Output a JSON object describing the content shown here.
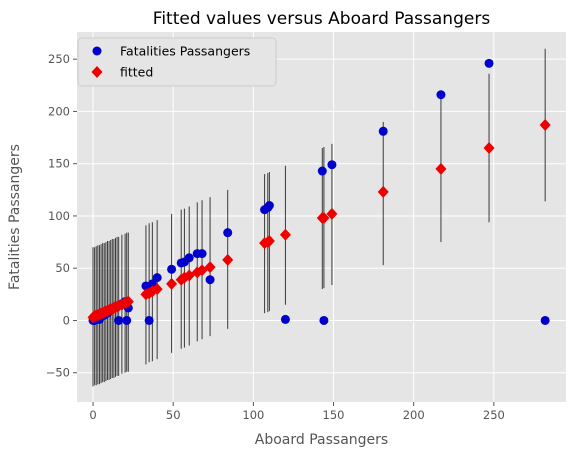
{
  "chart_data": {
    "type": "scatter",
    "title": "Fitted values versus Aboard Passangers",
    "xlabel": "Aboard Passangers",
    "ylabel": "Fatalities Passangers",
    "xlim": [
      -10,
      295
    ],
    "ylim": [
      -78,
      276
    ],
    "xticks": [
      0,
      50,
      100,
      150,
      200,
      250
    ],
    "yticks": [
      -50,
      0,
      50,
      100,
      150,
      200,
      250
    ],
    "grid": true,
    "legend": "top-left",
    "colors": {
      "background": "#e5e5e5",
      "grid": "#ffffff",
      "observed": "#0000cc",
      "fitted": "#ee0000",
      "interval": "#000000",
      "text": "#555555"
    },
    "series": [
      {
        "name": "Fatalities Passangers",
        "marker": "circle",
        "points": [
          [
            0,
            0
          ],
          [
            1,
            0
          ],
          [
            2,
            2
          ],
          [
            3,
            3
          ],
          [
            4,
            1
          ],
          [
            5,
            4
          ],
          [
            6,
            6
          ],
          [
            7,
            5
          ],
          [
            8,
            8
          ],
          [
            9,
            7
          ],
          [
            10,
            9
          ],
          [
            11,
            10
          ],
          [
            12,
            11
          ],
          [
            13,
            12
          ],
          [
            14,
            13
          ],
          [
            15,
            14
          ],
          [
            16,
            0
          ],
          [
            18,
            16
          ],
          [
            20,
            18
          ],
          [
            21,
            0
          ],
          [
            22,
            12
          ],
          [
            33,
            33
          ],
          [
            35,
            0
          ],
          [
            37,
            35
          ],
          [
            40,
            41
          ],
          [
            49,
            49
          ],
          [
            55,
            55
          ],
          [
            57,
            56
          ],
          [
            60,
            60
          ],
          [
            65,
            64
          ],
          [
            68,
            64
          ],
          [
            73,
            39
          ],
          [
            84,
            84
          ],
          [
            107,
            106
          ],
          [
            109,
            108
          ],
          [
            110,
            110
          ],
          [
            120,
            1
          ],
          [
            143,
            143
          ],
          [
            144,
            0
          ],
          [
            149,
            149
          ],
          [
            181,
            181
          ],
          [
            217,
            216
          ],
          [
            247,
            246
          ],
          [
            282,
            0
          ]
        ]
      },
      {
        "name": "fitted",
        "marker": "diamond",
        "points": [
          [
            0,
            3
          ],
          [
            1,
            4
          ],
          [
            2,
            5
          ],
          [
            3,
            5
          ],
          [
            4,
            6
          ],
          [
            5,
            7
          ],
          [
            6,
            7
          ],
          [
            7,
            8
          ],
          [
            8,
            9
          ],
          [
            9,
            9
          ],
          [
            10,
            10
          ],
          [
            11,
            11
          ],
          [
            12,
            11
          ],
          [
            13,
            12
          ],
          [
            14,
            13
          ],
          [
            15,
            13
          ],
          [
            16,
            14
          ],
          [
            18,
            15
          ],
          [
            20,
            17
          ],
          [
            21,
            17
          ],
          [
            22,
            18
          ],
          [
            33,
            25
          ],
          [
            35,
            26
          ],
          [
            37,
            28
          ],
          [
            40,
            30
          ],
          [
            49,
            35
          ],
          [
            55,
            39
          ],
          [
            57,
            41
          ],
          [
            60,
            43
          ],
          [
            65,
            46
          ],
          [
            68,
            48
          ],
          [
            73,
            51
          ],
          [
            84,
            58
          ],
          [
            107,
            74
          ],
          [
            109,
            75
          ],
          [
            110,
            76
          ],
          [
            120,
            82
          ],
          [
            143,
            98
          ],
          [
            144,
            98
          ],
          [
            149,
            102
          ],
          [
            181,
            123
          ],
          [
            217,
            145
          ],
          [
            247,
            165
          ],
          [
            282,
            187
          ]
        ],
        "intervals": [
          [
            -63,
            70
          ],
          [
            -62,
            70
          ],
          [
            -62,
            71
          ],
          [
            -61,
            72
          ],
          [
            -61,
            72
          ],
          [
            -60,
            73
          ],
          [
            -59,
            74
          ],
          [
            -59,
            74
          ],
          [
            -58,
            75
          ],
          [
            -57,
            76
          ],
          [
            -57,
            76
          ],
          [
            -56,
            77
          ],
          [
            -55,
            78
          ],
          [
            -55,
            78
          ],
          [
            -54,
            79
          ],
          [
            -53,
            80
          ],
          [
            -53,
            80
          ],
          [
            -51,
            82
          ],
          [
            -50,
            83
          ],
          [
            -49,
            84
          ],
          [
            -49,
            84
          ],
          [
            -42,
            91
          ],
          [
            -40,
            93
          ],
          [
            -39,
            94
          ],
          [
            -37,
            96
          ],
          [
            -31,
            102
          ],
          [
            -27,
            106
          ],
          [
            -26,
            107
          ],
          [
            -24,
            109
          ],
          [
            -20,
            113
          ],
          [
            -18,
            115
          ],
          [
            -15,
            118
          ],
          [
            -8,
            125
          ],
          [
            7,
            140
          ],
          [
            8,
            141
          ],
          [
            9,
            142
          ],
          [
            15,
            148
          ],
          [
            30,
            165
          ],
          [
            31,
            166
          ],
          [
            34,
            169
          ],
          [
            53,
            190
          ],
          [
            75,
            215
          ],
          [
            94,
            236
          ],
          [
            114,
            260
          ]
        ]
      }
    ]
  }
}
